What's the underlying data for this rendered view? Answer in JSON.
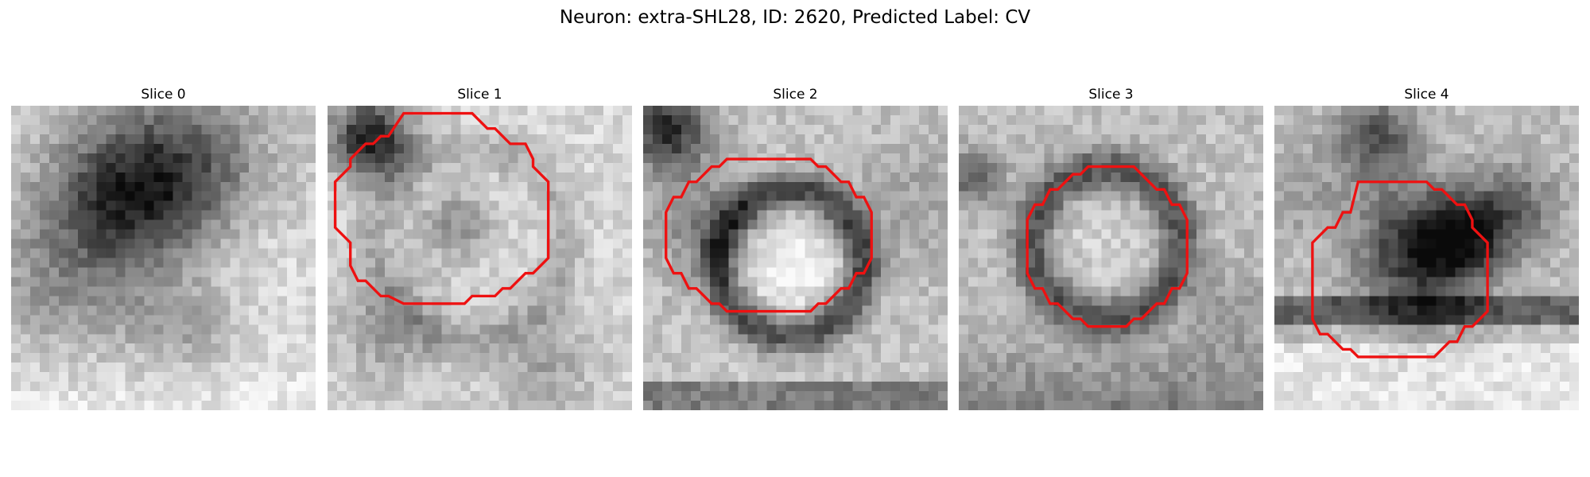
{
  "figure": {
    "title": "Neuron: extra-SHL28, ID: 2620, Predicted Label: CV"
  },
  "contour_color": "#ee1111",
  "slices": [
    {
      "title": "Slice 0",
      "has_contour": false
    },
    {
      "title": "Slice 1",
      "has_contour": true
    },
    {
      "title": "Slice 2",
      "has_contour": true
    },
    {
      "title": "Slice 3",
      "has_contour": true
    },
    {
      "title": "Slice 4",
      "has_contour": true
    }
  ]
}
